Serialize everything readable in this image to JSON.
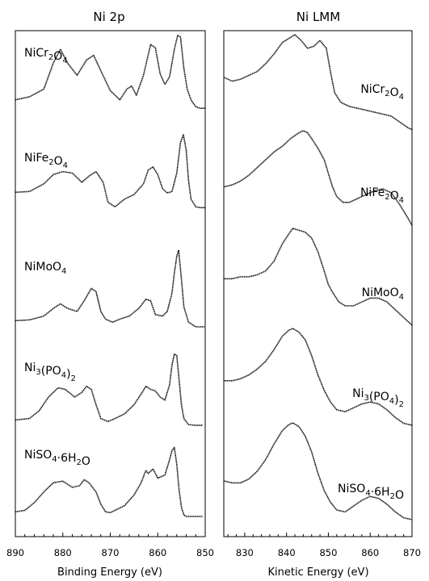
{
  "chart_data": [
    {
      "type": "line",
      "title": "Ni 2p",
      "xlabel": "Binding Energy (eV)",
      "ylabel": "",
      "xlim": [
        890,
        850
      ],
      "x_reversed": true,
      "xticks": [
        890,
        880,
        870,
        860,
        850
      ],
      "y_units": "arbitrary, stacked",
      "series": [
        {
          "name": "NiCr2O4",
          "label_main": "NiCr",
          "label_sub1": "2",
          "label_mid": "O",
          "label_sub2": "4",
          "x": [
            890,
            887,
            884,
            882,
            880.5,
            879,
            877,
            875,
            873.5,
            872,
            870,
            868,
            866.5,
            865.5,
            864.5,
            863,
            861.5,
            860.5,
            859.5,
            858.5,
            857.5,
            856.5,
            855.8,
            855.2,
            854.5,
            853.8,
            853,
            852,
            851,
            850
          ],
          "y": [
            0.14,
            0.18,
            0.28,
            0.62,
            0.8,
            0.62,
            0.46,
            0.66,
            0.72,
            0.52,
            0.26,
            0.14,
            0.28,
            0.32,
            0.2,
            0.46,
            0.86,
            0.82,
            0.48,
            0.34,
            0.44,
            0.8,
            0.98,
            0.96,
            0.55,
            0.28,
            0.14,
            0.05,
            0.03,
            0.03
          ]
        },
        {
          "name": "NiFe2O4",
          "label_main": "NiFe",
          "label_sub1": "2",
          "label_mid": "O",
          "label_sub2": "4",
          "x": [
            890,
            887,
            884,
            882,
            880,
            878,
            876,
            874.5,
            873,
            871.5,
            870.5,
            869,
            867,
            865,
            863,
            862,
            861,
            860,
            859,
            858,
            857,
            856,
            855.2,
            854.6,
            854,
            853.5,
            853,
            852,
            851,
            850
          ],
          "y": [
            0.25,
            0.26,
            0.36,
            0.48,
            0.52,
            0.5,
            0.38,
            0.46,
            0.52,
            0.38,
            0.12,
            0.06,
            0.16,
            0.22,
            0.36,
            0.54,
            0.58,
            0.48,
            0.3,
            0.24,
            0.26,
            0.5,
            0.9,
            1.0,
            0.8,
            0.4,
            0.16,
            0.06,
            0.05,
            0.05
          ]
        },
        {
          "name": "NiMoO4",
          "label_main": "NiMoO",
          "label_sub1": "",
          "label_mid": "",
          "label_sub2": "4",
          "x": [
            890,
            887,
            884,
            882,
            880.5,
            879,
            877,
            875.5,
            874,
            873,
            872,
            871,
            869.5,
            868,
            866,
            864,
            862.5,
            861.5,
            860.5,
            859,
            858,
            857,
            856.5,
            856,
            855.6,
            855,
            854.5,
            853.5,
            852,
            851,
            850
          ],
          "y": [
            0.08,
            0.09,
            0.14,
            0.24,
            0.3,
            0.24,
            0.2,
            0.34,
            0.5,
            0.46,
            0.2,
            0.1,
            0.06,
            0.1,
            0.14,
            0.24,
            0.36,
            0.34,
            0.16,
            0.14,
            0.2,
            0.44,
            0.7,
            0.92,
            1.0,
            0.62,
            0.26,
            0.06,
            0.0,
            0.0,
            0.0
          ]
        },
        {
          "name": "Ni3(PO4)2",
          "label_main": "Ni",
          "label_sub1": "3",
          "label_mid": "(PO",
          "label_sub2": "4",
          "x": [
            890,
            887,
            885,
            883,
            881,
            879.5,
            877.5,
            876,
            875,
            874,
            873,
            872,
            870.5,
            869,
            867,
            865,
            863.5,
            862.5,
            861.5,
            860.5,
            859.5,
            858.5,
            857.5,
            857,
            856.5,
            856,
            855.5,
            855,
            854.5,
            853.5,
            852,
            850.5
          ],
          "y": [
            0.1,
            0.12,
            0.22,
            0.4,
            0.52,
            0.5,
            0.4,
            0.46,
            0.54,
            0.5,
            0.3,
            0.12,
            0.08,
            0.12,
            0.18,
            0.3,
            0.44,
            0.54,
            0.5,
            0.48,
            0.4,
            0.36,
            0.56,
            0.82,
            0.96,
            0.94,
            0.62,
            0.3,
            0.12,
            0.04,
            0.03,
            0.03
          ]
        },
        {
          "name": "NiSO4·6H2O",
          "label_main": "NiSO",
          "label_sub1": "4",
          "label_mid": "·6H",
          "label_sub2": "2",
          "label_tail": "O",
          "x": [
            890,
            888,
            886,
            884,
            882,
            880,
            878,
            876.5,
            875.5,
            874.5,
            873,
            872,
            871,
            870,
            869,
            867,
            865,
            863.5,
            863,
            862.5,
            862,
            861,
            860,
            858.5,
            857.5,
            857,
            856.5,
            856,
            855.5,
            855,
            854.5,
            854,
            853,
            852,
            850.5
          ],
          "y": [
            0.06,
            0.08,
            0.18,
            0.32,
            0.44,
            0.46,
            0.38,
            0.4,
            0.48,
            0.44,
            0.32,
            0.16,
            0.06,
            0.05,
            0.08,
            0.14,
            0.28,
            0.44,
            0.52,
            0.6,
            0.56,
            0.62,
            0.5,
            0.54,
            0.74,
            0.86,
            0.9,
            0.68,
            0.34,
            0.12,
            0.02,
            0.0,
            0.0,
            0.0,
            0.0
          ]
        }
      ]
    },
    {
      "type": "line",
      "title": "Ni LMM",
      "xlabel": "Kinetic Energy (eV)",
      "ylabel": "",
      "xlim": [
        825,
        870
      ],
      "xticks": [
        830,
        840,
        850,
        860,
        870
      ],
      "y_units": "arbitrary, stacked",
      "series": [
        {
          "name": "NiCr2O4",
          "label_main": "NiCr",
          "label_sub1": "2",
          "label_mid": "O",
          "label_sub2": "4",
          "x": [
            825,
            827,
            829,
            831,
            833,
            835,
            837,
            839,
            840.5,
            842,
            843.5,
            845,
            846.5,
            848,
            849.5,
            850.5,
            851.5,
            853,
            855,
            857,
            859,
            861,
            863,
            865,
            867,
            869,
            870
          ],
          "y": [
            0.56,
            0.52,
            0.54,
            0.58,
            0.62,
            0.7,
            0.8,
            0.92,
            0.96,
            1.0,
            0.94,
            0.86,
            0.88,
            0.94,
            0.86,
            0.62,
            0.4,
            0.3,
            0.26,
            0.24,
            0.22,
            0.2,
            0.18,
            0.16,
            0.1,
            0.04,
            0.02
          ]
        },
        {
          "name": "NiFe2O4",
          "label_main": "NiFe",
          "label_sub1": "2",
          "label_mid": "O",
          "label_sub2": "4",
          "x": [
            825,
            827,
            829,
            831,
            833,
            835,
            837,
            839,
            841,
            843,
            844,
            845,
            846,
            847.5,
            849,
            850,
            851,
            852,
            853.5,
            855,
            857,
            859,
            861,
            863,
            865,
            867,
            869,
            870
          ],
          "y": [
            0.42,
            0.44,
            0.48,
            0.54,
            0.62,
            0.7,
            0.78,
            0.84,
            0.92,
            0.98,
            1.0,
            0.98,
            0.92,
            0.82,
            0.7,
            0.56,
            0.42,
            0.32,
            0.26,
            0.26,
            0.3,
            0.34,
            0.38,
            0.4,
            0.36,
            0.24,
            0.1,
            0.02
          ]
        },
        {
          "name": "NiMoO4",
          "label_main": "NiMoO",
          "label_sub1": "",
          "label_mid": "",
          "label_sub2": "4",
          "x": [
            825,
            827,
            829,
            831,
            833,
            835,
            837,
            839,
            840.5,
            841.5,
            843,
            844.5,
            846,
            847.5,
            849,
            850,
            851,
            852.5,
            854,
            856,
            858,
            860,
            862,
            864,
            866,
            868,
            870
          ],
          "y": [
            0.48,
            0.48,
            0.5,
            0.5,
            0.52,
            0.56,
            0.66,
            0.84,
            0.94,
            1.0,
            0.98,
            0.96,
            0.9,
            0.76,
            0.56,
            0.42,
            0.34,
            0.24,
            0.2,
            0.2,
            0.24,
            0.28,
            0.28,
            0.24,
            0.16,
            0.08,
            0.0
          ]
        },
        {
          "name": "Ni3(PO4)2",
          "label_main": "Ni",
          "label_sub1": "3",
          "label_mid": "(PO",
          "label_sub2": "4",
          "x": [
            825,
            827,
            829,
            831,
            833,
            835,
            837,
            839,
            840.5,
            841.5,
            843,
            844.5,
            846,
            847.5,
            849,
            850.5,
            852,
            854,
            856,
            858,
            860,
            862,
            864,
            866,
            868,
            870
          ],
          "y": [
            0.46,
            0.46,
            0.48,
            0.52,
            0.58,
            0.66,
            0.78,
            0.92,
            0.98,
            1.0,
            0.96,
            0.88,
            0.72,
            0.52,
            0.36,
            0.24,
            0.16,
            0.14,
            0.18,
            0.22,
            0.24,
            0.22,
            0.16,
            0.08,
            0.02,
            0.0
          ]
        },
        {
          "name": "NiSO4·6H2O",
          "label_main": "NiSO",
          "label_sub1": "4",
          "label_mid": "·6H",
          "label_sub2": "2",
          "label_tail": "O",
          "x": [
            825,
            827,
            829,
            831,
            833,
            835,
            837,
            839,
            840.5,
            841.5,
            843,
            844.5,
            846,
            847.5,
            849,
            850.5,
            852,
            854,
            856,
            858,
            860,
            862,
            864,
            866,
            868,
            870
          ],
          "y": [
            0.4,
            0.38,
            0.38,
            0.42,
            0.5,
            0.62,
            0.78,
            0.92,
            0.98,
            1.0,
            0.96,
            0.86,
            0.7,
            0.48,
            0.3,
            0.18,
            0.1,
            0.08,
            0.14,
            0.2,
            0.24,
            0.22,
            0.16,
            0.08,
            0.02,
            0.0
          ]
        }
      ]
    }
  ]
}
